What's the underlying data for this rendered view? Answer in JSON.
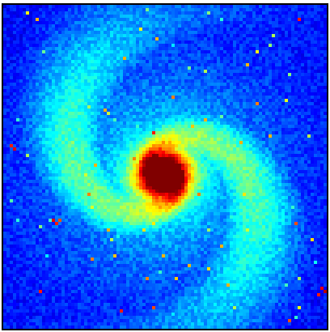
{
  "image": {
    "subject": "spiral-galaxy",
    "colormap": "jet",
    "colors": {
      "background": "#0018c8",
      "low": "#0000b4",
      "mid": "#00c8ff",
      "high": "#ffff00",
      "peak": "#d80000",
      "border": "#000000"
    }
  }
}
